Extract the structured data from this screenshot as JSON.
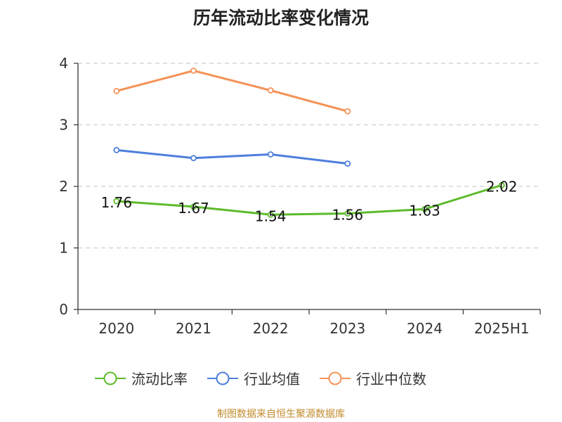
{
  "title": "历年流动比率变化情况",
  "source": "制图数据来自恒生聚源数据库",
  "chart_data": {
    "type": "line",
    "categories": [
      "2020",
      "2021",
      "2022",
      "2023",
      "2024",
      "2025H1"
    ],
    "ylim": [
      0,
      4
    ],
    "yticks": [
      0,
      1,
      2,
      3,
      4
    ],
    "grid": true,
    "legend_position": "bottom",
    "series": [
      {
        "name": "流动比率",
        "color": "#5dbb2b",
        "values": [
          1.76,
          1.67,
          1.54,
          1.56,
          1.63,
          2.02
        ],
        "labels": [
          "1.76",
          "1.67",
          "1.54",
          "1.56",
          "1.63",
          "2.02"
        ]
      },
      {
        "name": "行业均值",
        "color": "#4e7fdc",
        "values": [
          2.59,
          2.46,
          2.52,
          2.37,
          null,
          null
        ]
      },
      {
        "name": "行业中位数",
        "color": "#f59358",
        "values": [
          3.55,
          3.88,
          3.56,
          3.22,
          null,
          null
        ]
      }
    ]
  }
}
